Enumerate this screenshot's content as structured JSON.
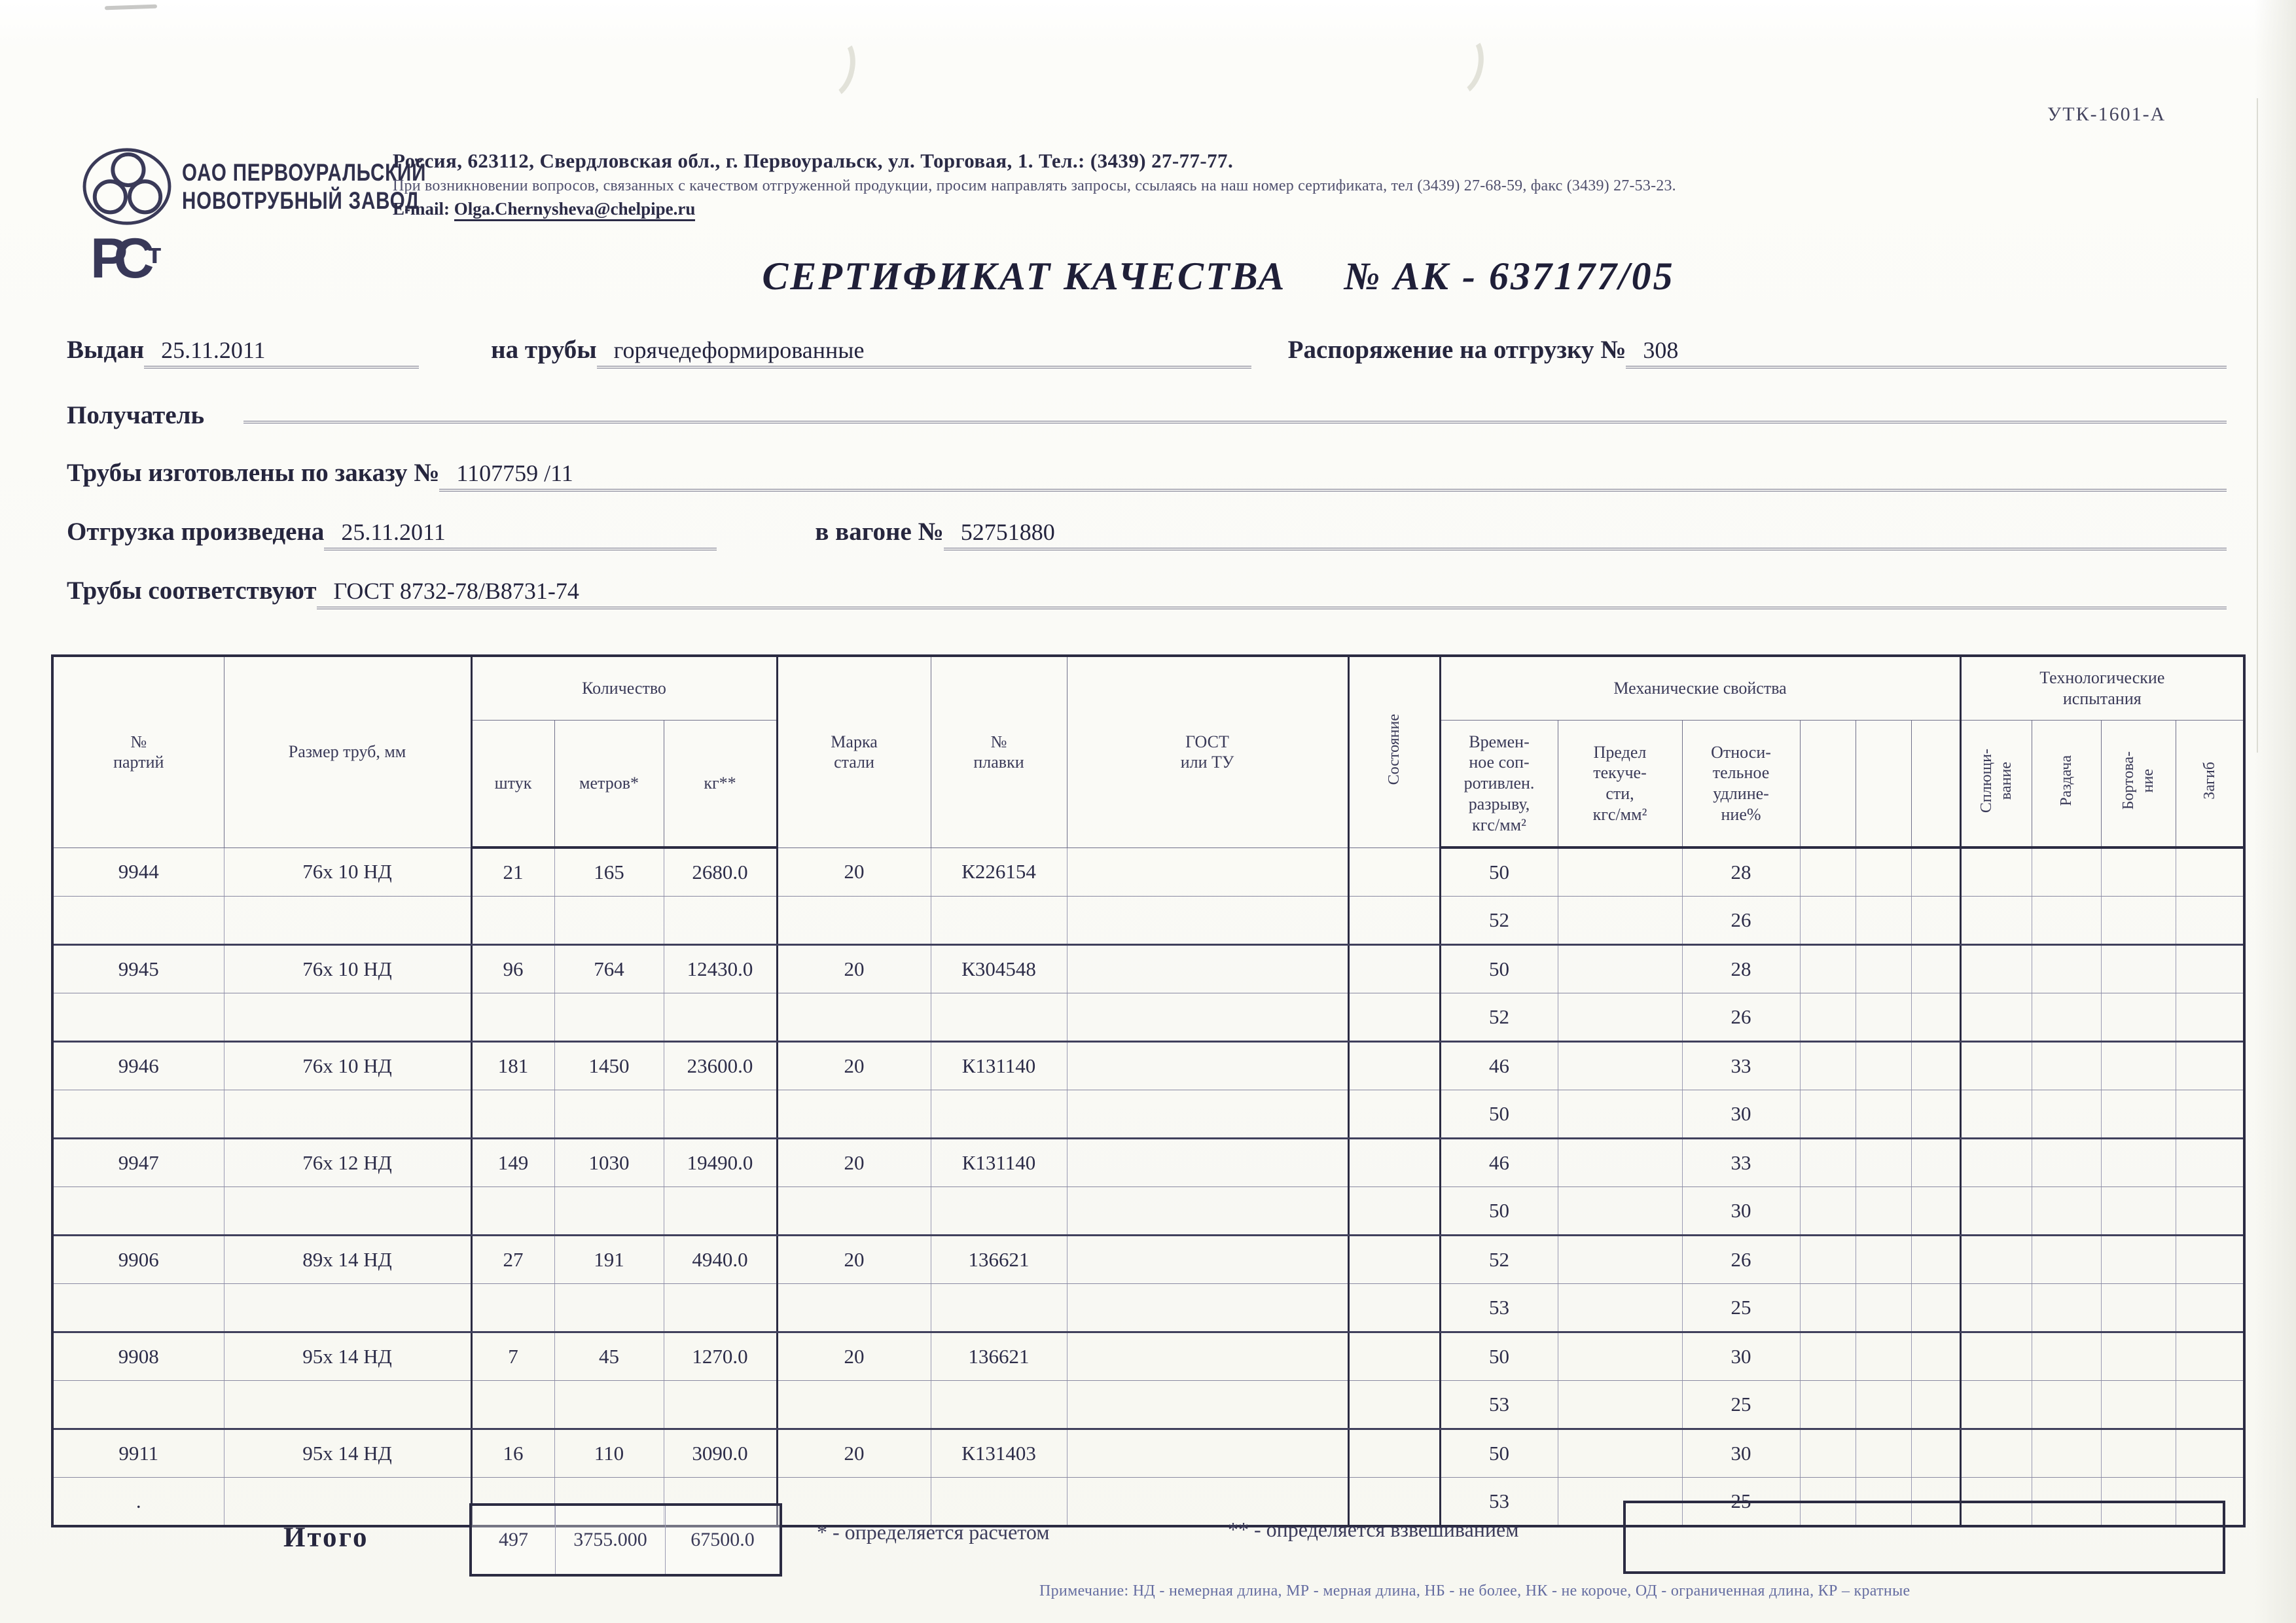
{
  "form_code": "УТК-1601-А",
  "company": {
    "name": "ОАО ПЕРВОУРАЛЬСКИЙ\nНОВОТРУБНЫЙ ЗАВОД",
    "address": "Россия, 623112, Свердловская обл., г. Первоуральск, ул. Торговая, 1. Тел.: (3439) 27-77-77.",
    "note": "При возникновении вопросов, связанных с качеством отгруженной продукции, просим направлять запросы, ссылаясь на наш номер сертификата, тел (3439) 27-68-59, факс (3439) 27-53-23.",
    "email_label": "E-mail:",
    "email": "Olga.Chernysheva@chelpipe.ru"
  },
  "stamp": {
    "p": "Р",
    "c": "С",
    "t": "т"
  },
  "title": "СЕРТИФИКАТ КАЧЕСТВА",
  "title_no": "№  АК -  637177/05",
  "fields": {
    "issued_label": "Выдан",
    "issued_value": "25.11.2011",
    "pipes_label": "на трубы",
    "pipes_value": "горячедеформированные",
    "order_label": "Распоряжение на отгрузку №",
    "order_value": "308",
    "receiver_label": "Получатель",
    "receiver_value": "",
    "made_label": "Трубы изготовлены по заказу №",
    "made_value": "1107759  /11",
    "shipped_label": "Отгрузка произведена",
    "shipped_value": "25.11.2011",
    "wagon_label": "в вагоне №",
    "wagon_value": "52751880",
    "conform_label": "Трубы соответствуют",
    "conform_value": "ГОСТ 8732-78/В8731-74"
  },
  "table": {
    "h_party": "№\nпартий",
    "h_size": "Размер труб, мм",
    "h_qty": "Количество",
    "h_pcs": "штук",
    "h_m": "метров*",
    "h_kg": "кг**",
    "h_steel": "Марка\nстали",
    "h_melt": "№\nплавки",
    "h_gost": "ГОСТ\nили ТУ",
    "h_state": "Состояние",
    "h_mech": "Механические свойства",
    "h_tensile": "Времен-\nное соп-\nротивлен.\nразрыву,\nкгс/мм²",
    "h_yield": "Предел\nтекуче-\nсти,\nкгс/мм²",
    "h_elong": "Относи-\nтельное\nудлине-\nние%",
    "h_tech": "Технологические\nиспытания",
    "h_flat": "Сплющи-\nвание",
    "h_expand": "Раздача",
    "h_flange": "Бортова-\nние",
    "h_bend": "Загиб",
    "rows": [
      {
        "party": "9944",
        "size": "76х 10 НД",
        "pcs": "21",
        "m": "165",
        "kg": "2680.0",
        "steel": "20",
        "melt": "К226154",
        "tensile": "50",
        "elong": "28"
      },
      {
        "tensile": "52",
        "elong": "26"
      },
      {
        "party": "9945",
        "size": "76х 10 НД",
        "pcs": "96",
        "m": "764",
        "kg": "12430.0",
        "steel": "20",
        "melt": "К304548",
        "tensile": "50",
        "elong": "28"
      },
      {
        "tensile": "52",
        "elong": "26"
      },
      {
        "party": "9946",
        "size": "76х 10 НД",
        "pcs": "181",
        "m": "1450",
        "kg": "23600.0",
        "steel": "20",
        "melt": "К131140",
        "tensile": "46",
        "elong": "33"
      },
      {
        "tensile": "50",
        "elong": "30"
      },
      {
        "party": "9947",
        "size": "76х 12 НД",
        "pcs": "149",
        "m": "1030",
        "kg": "19490.0",
        "steel": "20",
        "melt": "К131140",
        "tensile": "46",
        "elong": "33"
      },
      {
        "tensile": "50",
        "elong": "30"
      },
      {
        "party": "9906",
        "size": "89х 14 НД",
        "pcs": "27",
        "m": "191",
        "kg": "4940.0",
        "steel": "20",
        "melt": "136621",
        "tensile": "52",
        "elong": "26"
      },
      {
        "tensile": "53",
        "elong": "25"
      },
      {
        "party": "9908",
        "size": "95х 14 НД",
        "pcs": "7",
        "m": "45",
        "kg": "1270.0",
        "steel": "20",
        "melt": "136621",
        "tensile": "50",
        "elong": "30"
      },
      {
        "tensile": "53",
        "elong": "25"
      },
      {
        "party": "9911",
        "size": "95х 14 НД",
        "pcs": "16",
        "m": "110",
        "kg": "3090.0",
        "steel": "20",
        "melt": "К131403",
        "tensile": "50",
        "elong": "30"
      },
      {
        "party": ".",
        "tensile": "53",
        "elong": "25"
      }
    ],
    "total_label": "Итого",
    "total_pcs": "497",
    "total_m": "3755.000",
    "total_kg": "67500.0",
    "footnote_calc": "* - определяется расчетом",
    "footnote_weigh": "** - определяется взвешиванием"
  },
  "bottom_note": "Примечание: НД - немерная длина, МР - мерная длина, НБ - не более, НК - не короче, ОД - ограниченная длина, КР – кратные"
}
